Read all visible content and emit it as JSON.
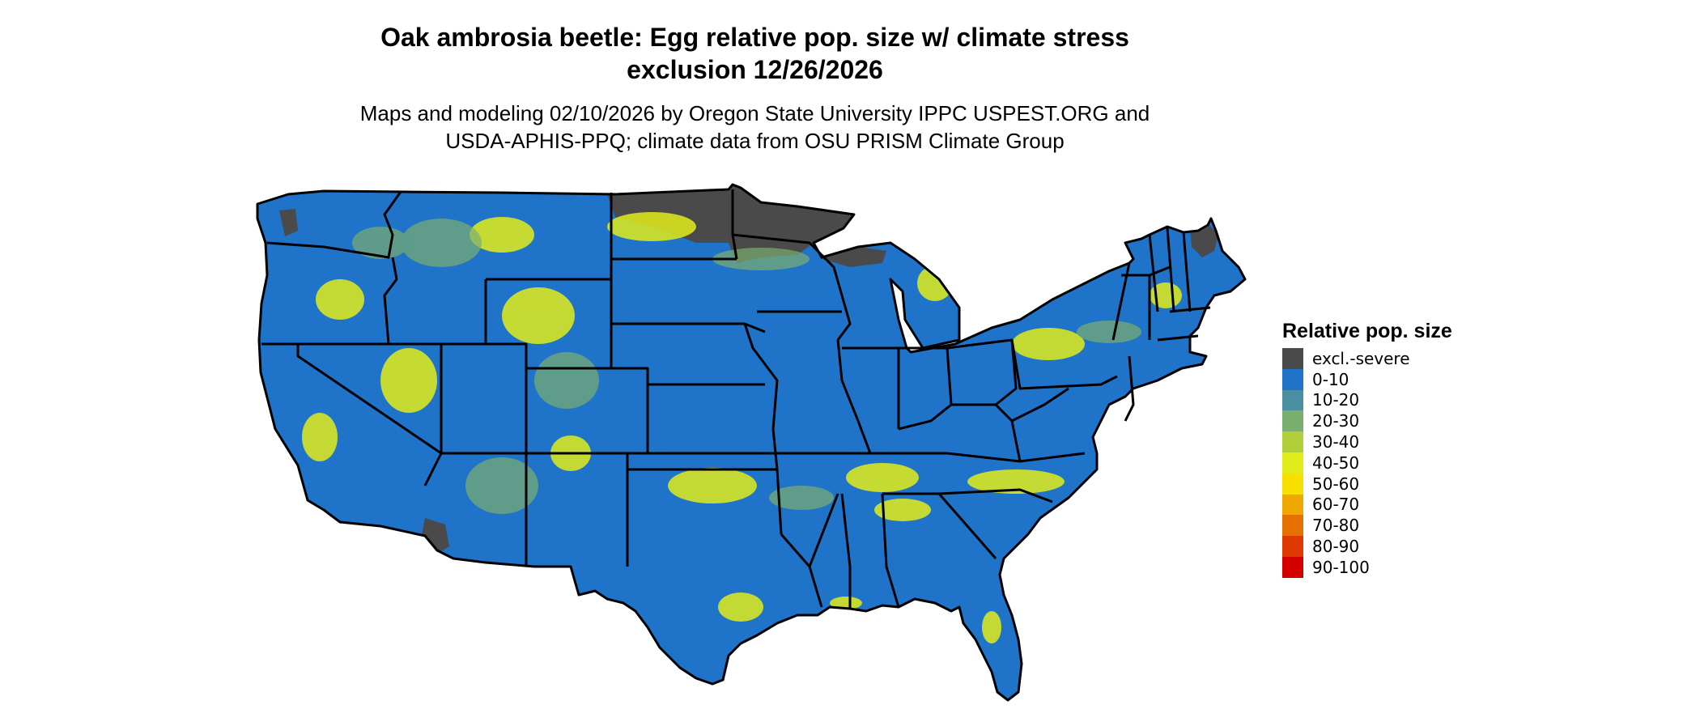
{
  "title": {
    "line1": "Oak ambrosia beetle: Egg relative pop. size w/ climate stress",
    "line2": "exclusion 12/26/2026"
  },
  "subtitle": {
    "line1": "Maps and modeling 02/10/2026 by Oregon State University IPPC USPEST.ORG and",
    "line2": "USDA-APHIS-PPQ; climate data from OSU PRISM Climate Group"
  },
  "legend": {
    "title": "Relative pop. size",
    "items": [
      {
        "label": "excl.-severe",
        "color": "#4a4a4a"
      },
      {
        "label": "0-10",
        "color": "#1f73c9"
      },
      {
        "label": "10-20",
        "color": "#4a8fa1"
      },
      {
        "label": "20-30",
        "color": "#7aae6e"
      },
      {
        "label": "30-40",
        "color": "#b0cf3a"
      },
      {
        "label": "40-50",
        "color": "#e2ec1a"
      },
      {
        "label": "50-60",
        "color": "#f7e000"
      },
      {
        "label": "60-70",
        "color": "#f0a800"
      },
      {
        "label": "70-80",
        "color": "#e67000"
      },
      {
        "label": "80-90",
        "color": "#de3a00"
      },
      {
        "label": "90-100",
        "color": "#d40000"
      }
    ]
  },
  "map": {
    "region": "Contiguous United States",
    "boundary_color": "#000000",
    "base_fill": "#1f73c9"
  }
}
